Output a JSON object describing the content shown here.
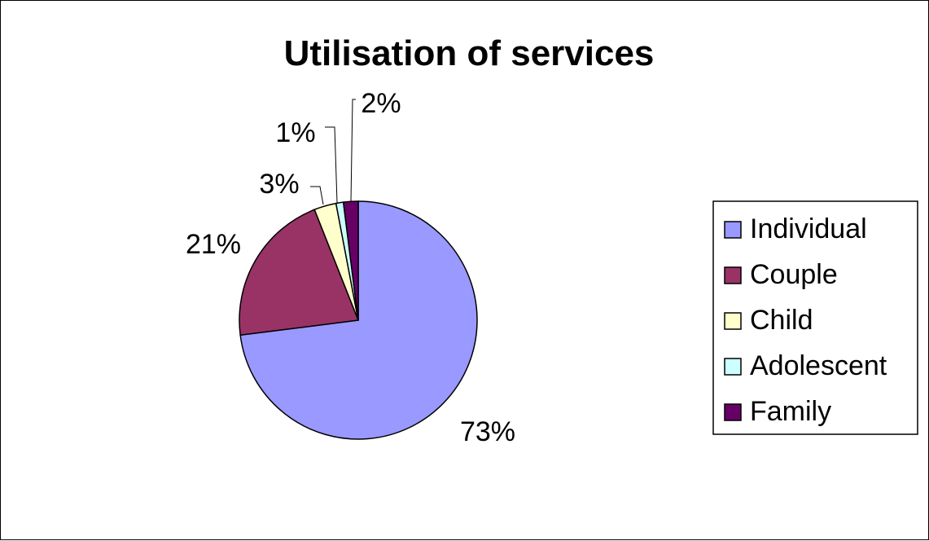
{
  "chart_data": {
    "type": "pie",
    "title": "Utilisation of services",
    "categories": [
      "Individual",
      "Couple",
      "Child",
      "Adolescent",
      "Family"
    ],
    "values": [
      73,
      21,
      3,
      1,
      2
    ],
    "labels": [
      "73%",
      "21%",
      "3%",
      "1%",
      "2%"
    ],
    "colors": [
      "#9999FF",
      "#993366",
      "#FFFFCC",
      "#CCFFFF",
      "#660066"
    ],
    "start_angle": "12 o'clock",
    "direction": "clockwise",
    "legend_position": "right"
  }
}
